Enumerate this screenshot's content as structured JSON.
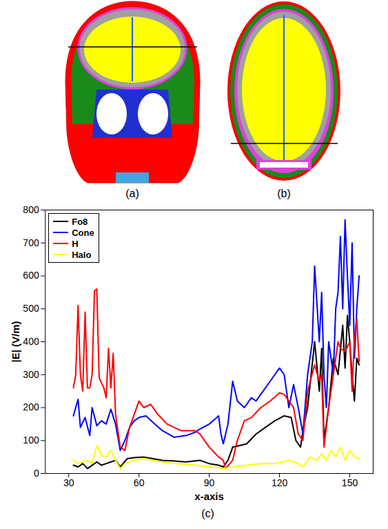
{
  "panels": [
    {
      "label": "(a)"
    },
    {
      "label": "(b)"
    }
  ],
  "chart_data": {
    "type": "line",
    "caption": "(c)",
    "x_label": "x-axis",
    "y_label": "|E| (V/m)",
    "xlim": [
      20,
      160
    ],
    "xticks": [
      30,
      60,
      90,
      120,
      150
    ],
    "ylim": [
      0,
      800
    ],
    "yticks": [
      0,
      100,
      200,
      300,
      400,
      500,
      600,
      700,
      800
    ],
    "legend": "upper left",
    "series": [
      {
        "name": "Fo8",
        "color": "#000000",
        "x": [
          32,
          34,
          36,
          38,
          40,
          42,
          44,
          46,
          48,
          50,
          52,
          55,
          58,
          62,
          66,
          70,
          75,
          80,
          86,
          90,
          94,
          96,
          98,
          100,
          103,
          106,
          110,
          114,
          118,
          122,
          125,
          127,
          129,
          130,
          132,
          135,
          137,
          138,
          139,
          141,
          143,
          145,
          147,
          148,
          149,
          150,
          151,
          152,
          153,
          154
        ],
        "values": [
          25,
          20,
          30,
          15,
          25,
          35,
          25,
          30,
          35,
          40,
          20,
          45,
          48,
          50,
          45,
          40,
          38,
          35,
          40,
          30,
          25,
          20,
          40,
          80,
          85,
          90,
          120,
          140,
          160,
          175,
          170,
          100,
          80,
          130,
          200,
          400,
          250,
          380,
          100,
          200,
          350,
          300,
          450,
          320,
          480,
          400,
          300,
          220,
          350,
          330
        ]
      },
      {
        "name": "Cone",
        "color": "#0000ff",
        "x": [
          32,
          34,
          35,
          37,
          39,
          40,
          42,
          44,
          46,
          48,
          50,
          52,
          54,
          56,
          58,
          60,
          63,
          66,
          70,
          75,
          80,
          84,
          86,
          90,
          94,
          95,
          96,
          98,
          100,
          102,
          105,
          108,
          110,
          113,
          117,
          120,
          122,
          124,
          126,
          128,
          130,
          132,
          134,
          135,
          137,
          138,
          139,
          140,
          141,
          143,
          144,
          145,
          146,
          147,
          148,
          149,
          150,
          151,
          152,
          153,
          154
        ],
        "values": [
          175,
          225,
          140,
          170,
          115,
          200,
          145,
          160,
          150,
          195,
          150,
          70,
          100,
          140,
          160,
          170,
          175,
          155,
          130,
          110,
          115,
          125,
          135,
          150,
          175,
          120,
          90,
          150,
          280,
          220,
          200,
          230,
          220,
          250,
          290,
          320,
          300,
          200,
          270,
          200,
          120,
          300,
          400,
          630,
          400,
          550,
          300,
          200,
          400,
          300,
          500,
          550,
          720,
          500,
          770,
          600,
          450,
          700,
          350,
          500,
          600
        ]
      },
      {
        "name": "H",
        "color": "#ff0000",
        "x": [
          32,
          33,
          34,
          35,
          36,
          37,
          38,
          39,
          40,
          41,
          42,
          43,
          45,
          46,
          47,
          48,
          49,
          50,
          52,
          54,
          56,
          58,
          60,
          62,
          65,
          68,
          72,
          78,
          84,
          86,
          90,
          94,
          96,
          97,
          100,
          102,
          105,
          108,
          112,
          116,
          120,
          122,
          124,
          126,
          128,
          130,
          132,
          135,
          137,
          138,
          139,
          141,
          143,
          145,
          146,
          148,
          150,
          151,
          152,
          153,
          154
        ],
        "values": [
          260,
          300,
          510,
          300,
          250,
          490,
          260,
          260,
          300,
          555,
          560,
          290,
          260,
          230,
          380,
          260,
          365,
          180,
          80,
          70,
          140,
          180,
          220,
          200,
          210,
          180,
          150,
          130,
          130,
          120,
          80,
          50,
          40,
          15,
          40,
          100,
          160,
          170,
          200,
          220,
          245,
          240,
          220,
          200,
          120,
          100,
          250,
          330,
          280,
          300,
          80,
          200,
          300,
          400,
          380,
          370,
          400,
          250,
          410,
          470,
          340
        ]
      },
      {
        "name": "Halo",
        "color": "#ffff00",
        "x": [
          32,
          34,
          36,
          38,
          40,
          42,
          44,
          46,
          48,
          50,
          52,
          54,
          58,
          62,
          66,
          70,
          76,
          84,
          90,
          96,
          100,
          106,
          112,
          118,
          124,
          128,
          130,
          133,
          136,
          138,
          140,
          142,
          144,
          146,
          148,
          150,
          152,
          154
        ],
        "values": [
          40,
          30,
          35,
          40,
          30,
          85,
          55,
          50,
          70,
          40,
          15,
          30,
          40,
          45,
          40,
          35,
          30,
          25,
          20,
          15,
          20,
          25,
          30,
          30,
          40,
          30,
          20,
          50,
          40,
          60,
          40,
          70,
          50,
          80,
          40,
          70,
          50,
          45
        ]
      }
    ]
  }
}
